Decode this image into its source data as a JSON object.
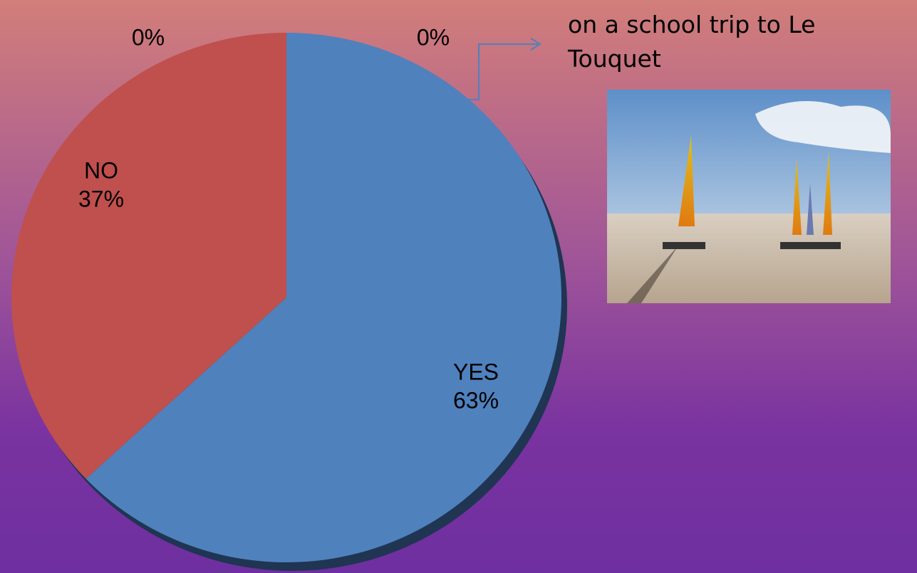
{
  "chart_data": {
    "type": "pie",
    "categories": [
      "YES",
      "NO",
      null,
      null
    ],
    "values": [
      63,
      37,
      0,
      0
    ],
    "value_labels": [
      "63%",
      "37%",
      "0%",
      "0%"
    ],
    "colors": [
      "#4f81bd",
      "#c0504d",
      "#9bbb59",
      "#8064a2"
    ],
    "annotation": [
      "on a school trip to Le",
      "Touquet"
    ]
  }
}
